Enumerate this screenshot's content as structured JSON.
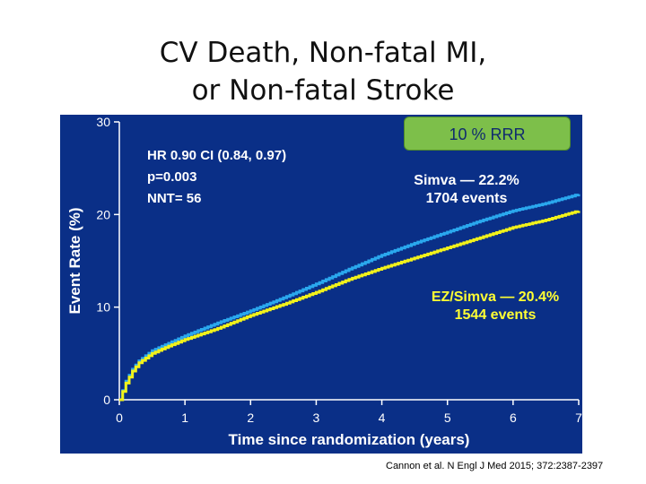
{
  "title": {
    "line1": "CV Death, Non-fatal MI,",
    "line2": "or Non-fatal Stroke"
  },
  "stats": {
    "hr": "HR 0.90 CI (0.84, 0.97)",
    "p": "p=0.003",
    "nnt": "NNT= 56"
  },
  "badge": "10 % RRR",
  "annotations": {
    "simva_line1": "Simva — 22.2%",
    "simva_line2": "1704 events",
    "ez_line1": "EZ/Simva — 20.4%",
    "ez_line2": "1544 events"
  },
  "citation": "Cannon et al. N Engl J Med 2015; 372:2387-2397",
  "colors": {
    "panel_bg": "#0a2f87",
    "simva": "#2aa8ee",
    "ez_simva": "#f2f21a",
    "badge_bg": "#7dbf4a",
    "axis": "#ffffff"
  },
  "chart_data": {
    "type": "line",
    "title": "",
    "xlabel": "Time since randomization (years)",
    "ylabel": "Event Rate (%)",
    "xlim": [
      0,
      7
    ],
    "ylim": [
      0,
      30
    ],
    "x_ticks": [
      0,
      1,
      2,
      3,
      4,
      5,
      6,
      7
    ],
    "y_ticks": [
      0,
      10,
      20,
      30
    ],
    "grid": false,
    "series": [
      {
        "name": "Simva",
        "color": "#2aa8ee",
        "x": [
          0,
          0.1,
          0.2,
          0.3,
          0.5,
          0.75,
          1,
          1.5,
          2,
          2.5,
          3,
          3.5,
          4,
          4.5,
          5,
          5.5,
          6,
          6.5,
          7
        ],
        "y": [
          0,
          2.0,
          3.3,
          4.2,
          5.3,
          6.1,
          6.9,
          8.3,
          9.6,
          11.0,
          12.5,
          14.1,
          15.6,
          16.9,
          18.1,
          19.3,
          20.4,
          21.2,
          22.2
        ]
      },
      {
        "name": "EZ/Simva",
        "color": "#f2f21a",
        "x": [
          0,
          0.1,
          0.2,
          0.3,
          0.5,
          0.75,
          1,
          1.5,
          2,
          2.5,
          3,
          3.5,
          4,
          4.5,
          5,
          5.5,
          6,
          6.5,
          7
        ],
        "y": [
          0,
          1.8,
          3.1,
          4.0,
          5.0,
          5.8,
          6.5,
          7.7,
          9.1,
          10.3,
          11.6,
          13.0,
          14.2,
          15.3,
          16.4,
          17.5,
          18.6,
          19.4,
          20.4
        ]
      }
    ]
  }
}
